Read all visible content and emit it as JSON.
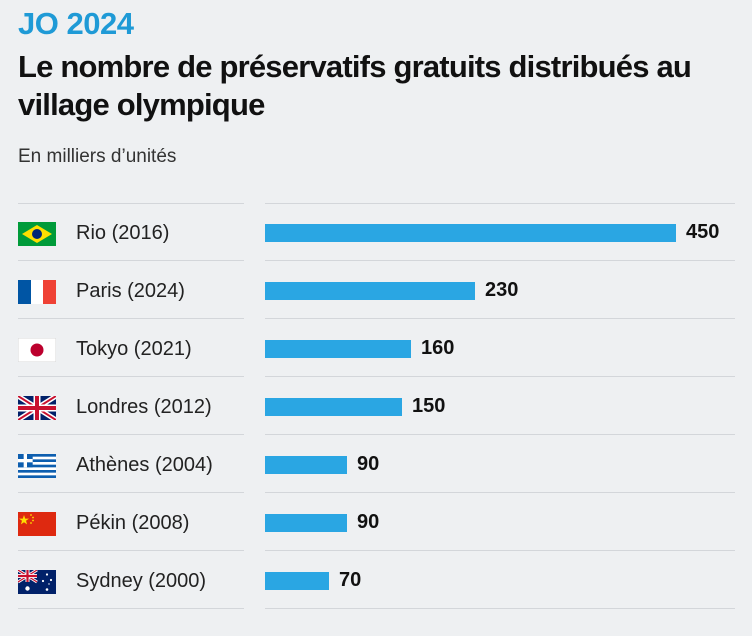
{
  "header": {
    "kicker": "JO 2024",
    "title": "Le nombre de préservatifs gratuits distribués au village olympique",
    "subtitle": "En milliers d’unités"
  },
  "colors": {
    "accent": "#1f9ad6",
    "bar": "#2aa6e3"
  },
  "chart_data": {
    "type": "bar",
    "orientation": "horizontal",
    "title": "Le nombre de préservatifs gratuits distribués au village olympique",
    "subtitle": "En milliers d’unités",
    "xlabel": "",
    "ylabel": "",
    "xlim": [
      0,
      450
    ],
    "grid": false,
    "categories": [
      "Rio (2016)",
      "Paris (2024)",
      "Tokyo (2021)",
      "Londres (2012)",
      "Athènes (2004)",
      "Pékin (2008)",
      "Sydney (2000)"
    ],
    "values": [
      450,
      230,
      160,
      150,
      90,
      90,
      70
    ],
    "value_labels": [
      "450",
      "230",
      "160",
      "150",
      "90",
      "90",
      "70"
    ],
    "flag_icons": [
      "brazil-flag-icon",
      "france-flag-icon",
      "japan-flag-icon",
      "uk-flag-icon",
      "greece-flag-icon",
      "china-flag-icon",
      "australia-flag-icon"
    ]
  }
}
